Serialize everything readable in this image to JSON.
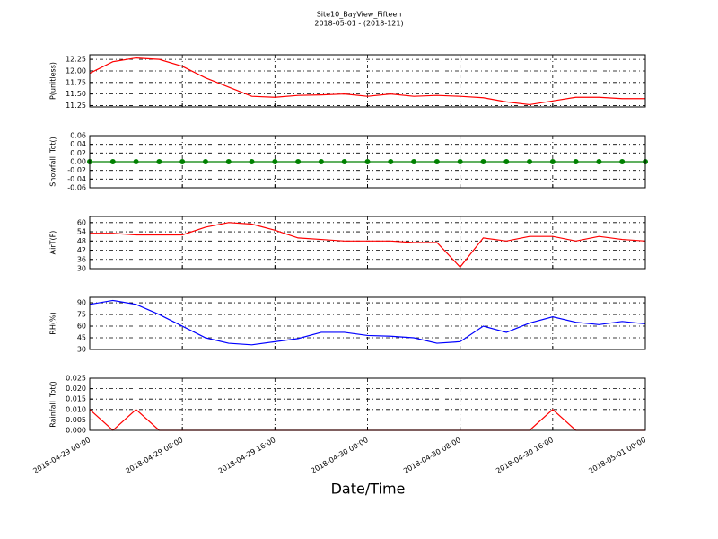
{
  "title": "Site10_BayView_Fifteen",
  "subtitle": "2018-05-01 - (2018-121)",
  "xlabel": "Date/Time",
  "xlim": [
    "2018-04-29 00:00",
    "2018-05-01 00:00"
  ],
  "xticks": [
    "2018-04-29 00:00",
    "2018-04-29 08:00",
    "2018-04-29 16:00",
    "2018-04-30 00:00",
    "2018-04-30 08:00",
    "2018-04-30 16:00",
    "2018-05-01 00:00"
  ],
  "x": [
    "2018-04-29 00:00",
    "2018-04-29 02:00",
    "2018-04-29 04:00",
    "2018-04-29 06:00",
    "2018-04-29 08:00",
    "2018-04-29 10:00",
    "2018-04-29 12:00",
    "2018-04-29 14:00",
    "2018-04-29 16:00",
    "2018-04-29 18:00",
    "2018-04-29 20:00",
    "2018-04-29 22:00",
    "2018-04-30 00:00",
    "2018-04-30 02:00",
    "2018-04-30 04:00",
    "2018-04-30 06:00",
    "2018-04-30 08:00",
    "2018-04-30 10:00",
    "2018-04-30 12:00",
    "2018-04-30 14:00",
    "2018-04-30 16:00",
    "2018-04-30 18:00",
    "2018-04-30 20:00",
    "2018-04-30 22:00",
    "2018-05-01 00:00"
  ],
  "grid": true,
  "chart_data": [
    {
      "type": "line",
      "ylabel": "P(unitless)",
      "ylim": [
        11.22,
        12.35
      ],
      "yticks": [
        11.25,
        {
          "value": 11.5,
          "label": "11.50"
        },
        11.75,
        {
          "value": 12,
          "label": "12.00"
        },
        12.25
      ],
      "series": [
        {
          "color": "#ff0000",
          "marker": false,
          "values": [
            11.95,
            12.2,
            12.28,
            12.25,
            12.1,
            11.85,
            11.65,
            11.45,
            11.43,
            11.47,
            11.48,
            11.5,
            11.45,
            11.5,
            11.45,
            11.47,
            11.45,
            11.42,
            11.33,
            11.27,
            11.35,
            11.43,
            11.43,
            11.4,
            11.4
          ]
        }
      ]
    },
    {
      "type": "line",
      "ylabel": "Snowfall_Tot()",
      "ylim": [
        -0.06,
        0.06
      ],
      "yticks": [
        -0.06,
        -0.04,
        -0.02,
        {
          "value": 0,
          "label": "0.00"
        },
        0.02,
        0.04,
        0.06
      ],
      "series": [
        {
          "color": "#008000",
          "marker": true,
          "values": [
            0,
            0,
            0,
            0,
            0,
            0,
            0,
            0,
            0,
            0,
            0,
            0,
            0,
            0,
            0,
            0,
            0,
            0,
            0,
            0,
            0,
            0,
            0,
            0,
            0
          ]
        }
      ]
    },
    {
      "type": "line",
      "ylabel": "AirT(F)",
      "ylim": [
        30,
        64
      ],
      "yticks": [
        30,
        36,
        42,
        48,
        54,
        60
      ],
      "series": [
        {
          "color": "#ff0000",
          "marker": false,
          "values": [
            53,
            53,
            52,
            52,
            52,
            57,
            60,
            59,
            55,
            50,
            49,
            48,
            48,
            48,
            47,
            47,
            31,
            50,
            48,
            51,
            51,
            48,
            51,
            49,
            48
          ]
        }
      ]
    },
    {
      "type": "line",
      "ylabel": "RH(%)",
      "ylim": [
        30,
        97
      ],
      "yticks": [
        30,
        45,
        60,
        75,
        90
      ],
      "series": [
        {
          "color": "#0000ff",
          "marker": false,
          "values": [
            88,
            93,
            88,
            75,
            60,
            45,
            38,
            36,
            40,
            44,
            52,
            52,
            48,
            47,
            45,
            38,
            40,
            60,
            52,
            64,
            72,
            65,
            62,
            66,
            63
          ]
        }
      ]
    },
    {
      "type": "line",
      "ylabel": "Rainfall_Tot()",
      "ylim": [
        0,
        0.025
      ],
      "yticks": [
        {
          "value": 0,
          "label": "0.000"
        },
        0.005,
        {
          "value": 0.01,
          "label": "0.010"
        },
        0.015,
        {
          "value": 0.02,
          "label": "0.020"
        },
        0.025
      ],
      "series": [
        {
          "color": "#ff0000",
          "marker": false,
          "values": [
            0.01,
            0,
            0.01,
            0,
            0,
            0,
            0,
            0,
            0,
            0,
            0,
            0,
            0,
            0,
            0,
            0,
            0,
            0,
            0,
            0,
            0.01,
            0,
            0,
            0,
            0
          ]
        }
      ]
    }
  ]
}
